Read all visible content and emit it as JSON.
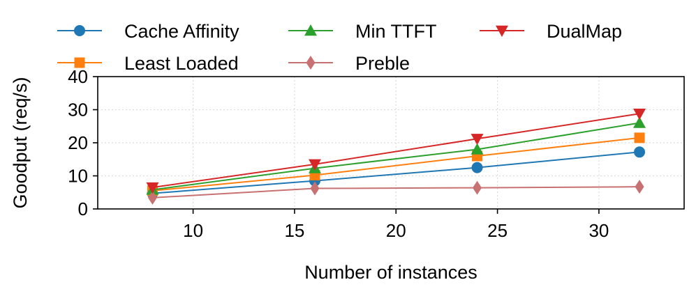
{
  "chart_data": {
    "type": "line",
    "title": "",
    "xlabel": "Number of instances",
    "ylabel": "Goodput (req/s)",
    "x": [
      8,
      16,
      24,
      32
    ],
    "xlim": [
      5.3,
      34.2
    ],
    "ylim": [
      0,
      40
    ],
    "xticks": [
      10,
      15,
      20,
      25,
      30
    ],
    "yticks": [
      0,
      10,
      20,
      30,
      40
    ],
    "xtick_labels": [
      "10",
      "15",
      "20",
      "25",
      "30"
    ],
    "ytick_labels": [
      "0",
      "10",
      "20",
      "30",
      "40"
    ],
    "grid": true,
    "legend_position": "top",
    "series": [
      {
        "name": "Cache Affinity",
        "color": "#1f77b4",
        "marker": "circle",
        "values": [
          4.7,
          8.5,
          12.5,
          17.2
        ]
      },
      {
        "name": "Least Loaded",
        "color": "#ff7f0e",
        "marker": "square",
        "values": [
          5.5,
          10.2,
          16.0,
          21.5
        ]
      },
      {
        "name": "Min TTFT",
        "color": "#2ca02c",
        "marker": "triangle-up",
        "values": [
          5.8,
          12.3,
          18.0,
          26.0
        ]
      },
      {
        "name": "Preble",
        "color": "#c87172",
        "marker": "diamond",
        "values": [
          3.4,
          6.2,
          6.4,
          6.7
        ]
      },
      {
        "name": "DualMap",
        "color": "#d62728",
        "marker": "triangle-down",
        "values": [
          6.5,
          13.5,
          21.2,
          28.8
        ]
      }
    ]
  }
}
